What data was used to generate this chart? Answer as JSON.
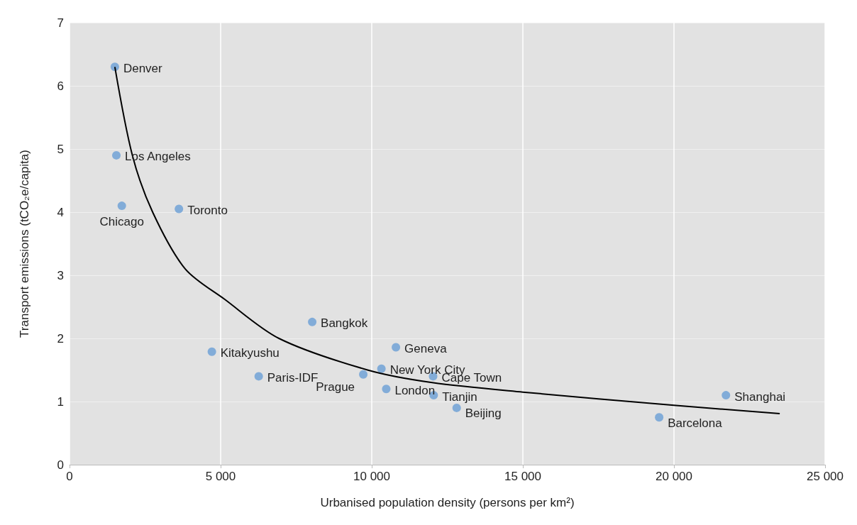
{
  "chart_data": {
    "type": "scatter",
    "xlabel": "Urbanised population density (persons per km²)",
    "ylabel": "Transport emissions (tCO₂e/capita)",
    "xlim": [
      0,
      25000
    ],
    "xticks": [
      0,
      {
        "value": 5000,
        "label": "5 000"
      },
      {
        "value": 10000,
        "label": "10 000"
      },
      {
        "value": 15000,
        "label": "15 000"
      },
      {
        "value": 20000,
        "label": "20 000"
      },
      {
        "value": 25000,
        "label": "25 000"
      }
    ],
    "ylim": [
      0,
      7
    ],
    "yticks": [
      0,
      1,
      2,
      3,
      4,
      5,
      6,
      7
    ],
    "grid": true,
    "series": [
      {
        "color": "#6a9fd6",
        "marker": "circle",
        "x": [
          1500,
          1550,
          1730,
          3620,
          4710,
          6260,
          8030,
          9720,
          10320,
          10480,
          10800,
          12030,
          12050,
          12810,
          19510,
          21720
        ],
        "values": [
          6.3,
          4.9,
          4.1,
          4.05,
          1.79,
          1.4,
          2.26,
          1.43,
          1.52,
          1.2,
          1.86,
          1.4,
          1.1,
          0.9,
          0.75,
          1.1
        ]
      },
      {
        "type": "line",
        "marker": "none",
        "color": "#000000",
        "x": [
          1500,
          2080,
          2750,
          3830,
          5130,
          6930,
          9860,
          12000,
          15000,
          20000,
          23500
        ],
        "values": [
          6.3,
          4.9,
          4.0,
          3.1,
          2.62,
          2.0,
          1.5,
          1.3,
          1.15,
          0.94,
          0.81
        ]
      }
    ],
    "annotations": [
      {
        "text": "Denver",
        "x": 1500,
        "y": 6.3
      },
      {
        "text": "Los Angeles",
        "x": 1550,
        "y": 4.9
      },
      {
        "text": "Chicago",
        "x": 1730,
        "y": 4.1
      },
      {
        "text": "Toronto",
        "x": 3620,
        "y": 4.05
      },
      {
        "text": "Kitakyushu",
        "x": 4710,
        "y": 1.79
      },
      {
        "text": "Paris-IDF",
        "x": 6260,
        "y": 1.4
      },
      {
        "text": "Bangkok",
        "x": 8030,
        "y": 2.26
      },
      {
        "text": "Prague",
        "x": 9720,
        "y": 1.43
      },
      {
        "text": "New York City",
        "x": 10320,
        "y": 1.52
      },
      {
        "text": "London",
        "x": 10480,
        "y": 1.2
      },
      {
        "text": "Geneva",
        "x": 10800,
        "y": 1.86
      },
      {
        "text": "Cape Town",
        "x": 12030,
        "y": 1.4
      },
      {
        "text": "Tianjin",
        "x": 12050,
        "y": 1.1
      },
      {
        "text": "Beijing",
        "x": 12810,
        "y": 0.9
      },
      {
        "text": "Barcelona",
        "x": 19510,
        "y": 0.75
      },
      {
        "text": "Shanghai",
        "x": 21720,
        "y": 1.1
      }
    ]
  }
}
